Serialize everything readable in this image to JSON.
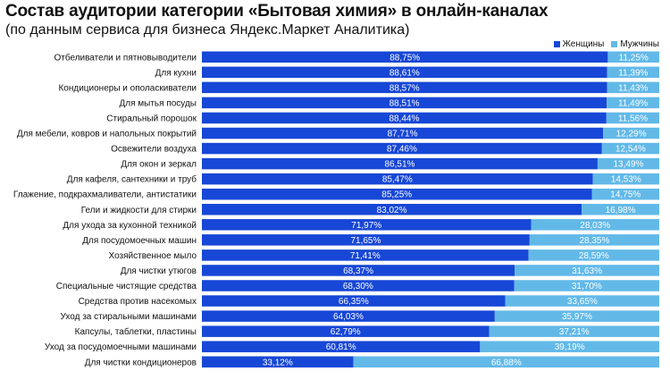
{
  "title": "Состав аудитории категории «Бытовая химия» в онлайн-каналах",
  "subtitle": "(по данным сервиса для бизнеса Яндекс.Маркет Аналитика)",
  "colors": {
    "women": "#1747d6",
    "men": "#62b9e8"
  },
  "chart_data": {
    "type": "bar",
    "orientation": "horizontal",
    "stacked": true,
    "percent_stacked": true,
    "title": "Состав аудитории категории «Бытовая химия» в онлайн-каналах",
    "subtitle": "(по данным сервиса для бизнеса Яндекс.Маркет Аналитика)",
    "legend_position": "top-right",
    "grid": false,
    "xlim": [
      0,
      100
    ],
    "categories": [
      "Отбеливатели и пятновыводители",
      "Для кухни",
      "Кондиционеры и ополаскиватели",
      "Для мытья посуды",
      "Стиральный порошок",
      "Для мебели, ковров и напольных покрытий",
      "Освежители воздуха",
      "Для окон и зеркал",
      "Для кафеля, сантехники и труб",
      "Глажение, подкрахмаливатели, антистатики",
      "Гели и жидкости для стирки",
      "Для ухода за кухонной техникой",
      "Для посудомоечных машин",
      "Хозяйственное мыло",
      "Для чистки утюгов",
      "Специальные чистящие средства",
      "Средства против насекомых",
      "Уход за стиральными машинами",
      "Капсулы, таблетки, пластины",
      "Уход за посудомоечными машинами",
      "Для чистки кондиционеров"
    ],
    "series": [
      {
        "name": "Женщины",
        "values": [
          88.75,
          88.61,
          88.57,
          88.51,
          88.44,
          87.71,
          87.46,
          86.51,
          85.47,
          85.25,
          83.02,
          71.97,
          71.65,
          71.41,
          68.37,
          68.3,
          66.35,
          64.03,
          62.79,
          60.81,
          33.12
        ],
        "labels": [
          "88,75%",
          "88,61%",
          "88,57%",
          "88,51%",
          "88,44%",
          "87,71%",
          "87,46%",
          "86,51%",
          "85,47%",
          "85,25%",
          "83,02%",
          "71,97%",
          "71,65%",
          "71,41%",
          "68,37%",
          "68,30%",
          "66,35%",
          "64,03%",
          "62,79%",
          "60,81%",
          "33,12%"
        ]
      },
      {
        "name": "Мужчины",
        "values": [
          11.25,
          11.39,
          11.43,
          11.49,
          11.56,
          12.29,
          12.54,
          13.49,
          14.53,
          14.75,
          16.98,
          28.03,
          28.35,
          28.59,
          31.63,
          31.7,
          33.65,
          35.97,
          37.21,
          39.19,
          66.88
        ],
        "labels": [
          "11,25%",
          "11,39%",
          "11,43%",
          "11,49%",
          "11,56%",
          "12,29%",
          "12,54%",
          "13,49%",
          "14,53%",
          "14,75%",
          "16,98%",
          "28,03%",
          "28,35%",
          "28,59%",
          "31,63%",
          "31,70%",
          "33,65%",
          "35,97%",
          "37,21%",
          "39,19%",
          "66,88%"
        ]
      }
    ]
  }
}
